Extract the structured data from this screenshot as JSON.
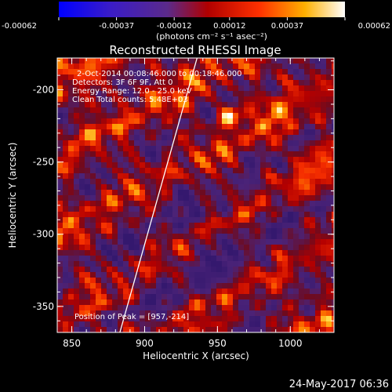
{
  "chart_data": {
    "type": "heatmap",
    "title": "Reconstructed RHESSI Image",
    "xlabel": "Heliocentric X (arcsec)",
    "ylabel": "Heliocentric Y (arcsec)",
    "xlim": [
      840,
      1030
    ],
    "ylim": [
      -368,
      -178
    ],
    "x_ticks": [
      850,
      900,
      950,
      1000
    ],
    "y_ticks": [
      -200,
      -250,
      -300,
      -350
    ],
    "colorbar": {
      "ticks": [
        "-0.00062",
        "-0.00037",
        "-0.00012",
        "0.00012",
        "0.00037",
        "0.00062"
      ],
      "unit_label": "(photons cm⁻² s⁻¹ asec⁻²)",
      "range": [
        -0.00062,
        0.00062
      ]
    },
    "annotations": [
      "2-Oct-2014 00:08:46.000 to 00:18:46.000",
      "Detectors: 3F 6F 9F, Att 0",
      "Energy Range: 12.0 - 25.0 keV",
      "Clean    Total counts: 5.48E+03"
    ],
    "peak_label": "Position of Peak = [957,-214]",
    "peak": [
      957,
      -214
    ],
    "limb_line": [
      [
        883,
        -368
      ],
      [
        936,
        -178
      ]
    ]
  },
  "footer": {
    "timestamp": "24-May-2017 06:36"
  }
}
